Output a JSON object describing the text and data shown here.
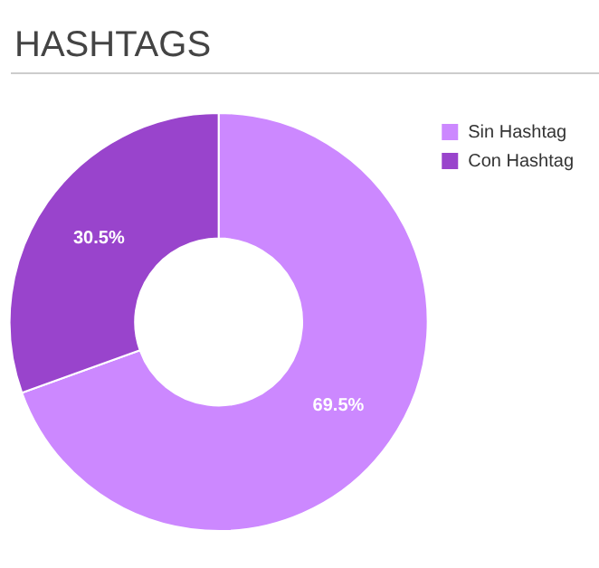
{
  "chart_data": {
    "type": "donut",
    "title": "HASHTAGS",
    "categories": [
      "Sin Hashtag",
      "Con Hashtag"
    ],
    "values": [
      69.5,
      30.5
    ],
    "colors": [
      "#cc88ff",
      "#9944cc"
    ],
    "value_labels": [
      "69.5%",
      "30.5%"
    ],
    "legend": "top right"
  }
}
